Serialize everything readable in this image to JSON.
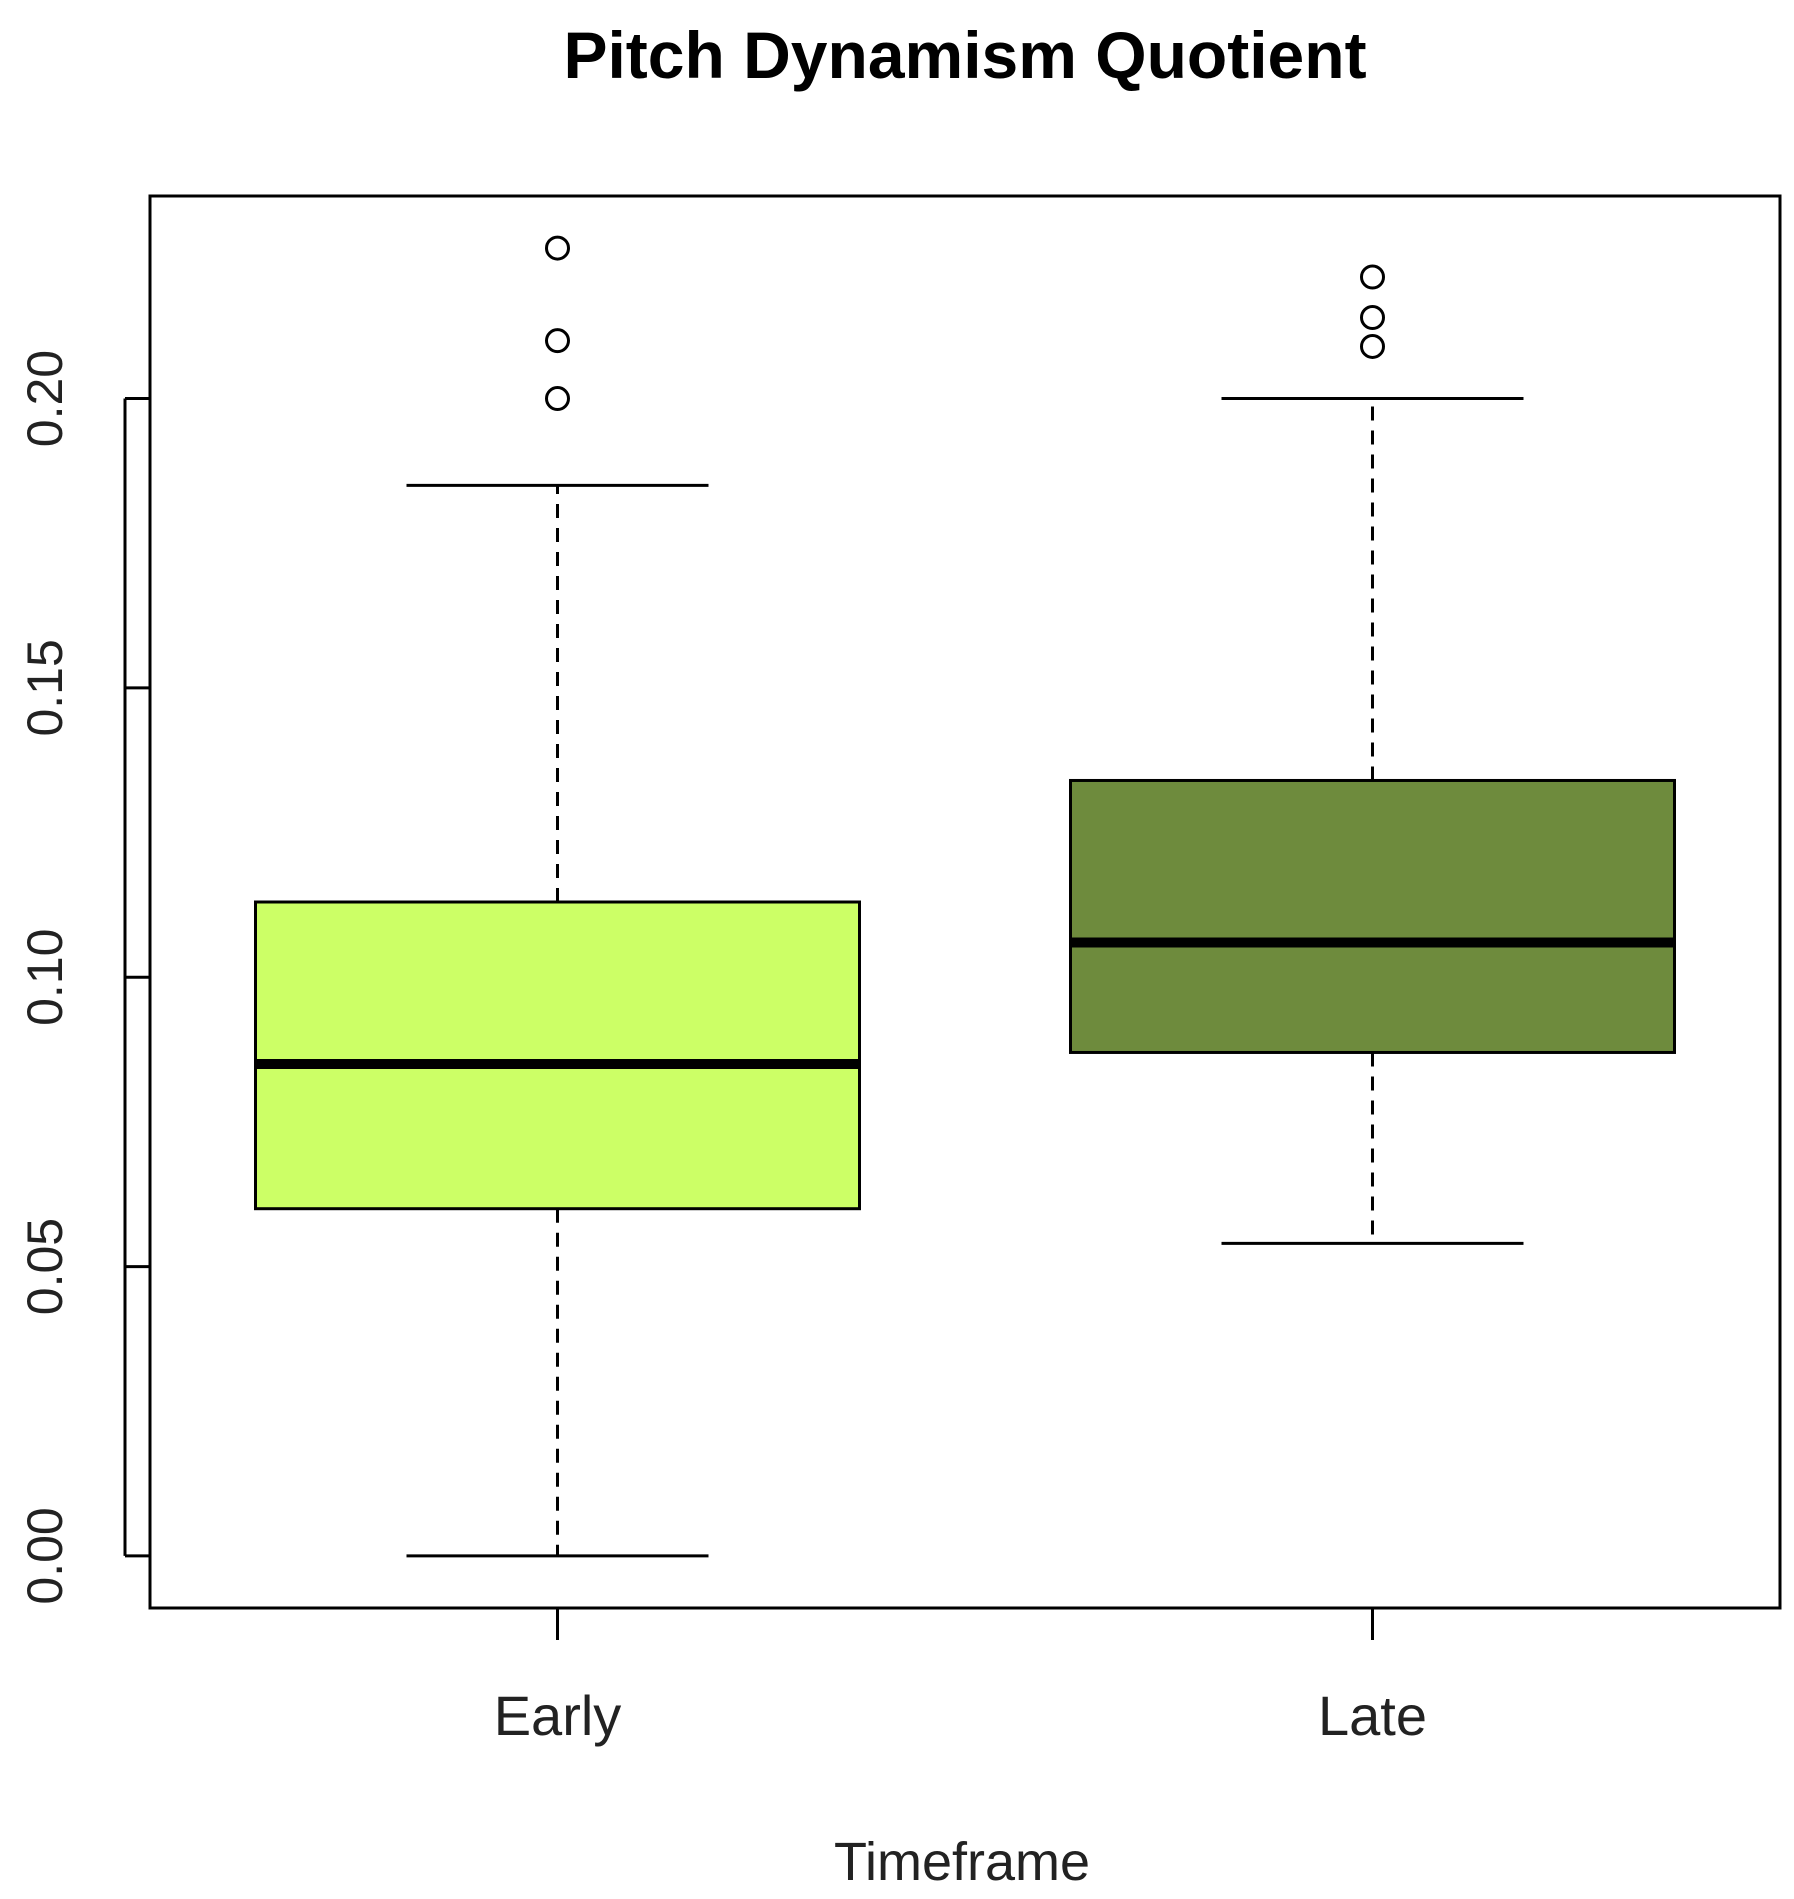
{
  "chart_data": {
    "type": "box",
    "title": "Pitch Dynamism Quotient",
    "xlabel": "Timeframe",
    "ylabel": "",
    "categories": [
      "Early",
      "Late"
    ],
    "ylim": [
      -0.009,
      0.235
    ],
    "yticks": [
      0.0,
      0.05,
      0.1,
      0.15,
      0.2
    ],
    "ytick_labels": [
      "0.00",
      "0.05",
      "0.10",
      "0.15",
      "0.20"
    ],
    "grid": false,
    "legend": false,
    "series": [
      {
        "category": "Early",
        "whisker_low": 0.0,
        "q1": 0.06,
        "median": 0.085,
        "q3": 0.113,
        "whisker_high": 0.185,
        "outliers": [
          0.2,
          0.21,
          0.226
        ],
        "fill": "#CCFF66"
      },
      {
        "category": "Late",
        "whisker_low": 0.054,
        "q1": 0.087,
        "median": 0.106,
        "q3": 0.134,
        "whisker_high": 0.2,
        "outliers": [
          0.209,
          0.214,
          0.221
        ],
        "fill": "#6E8B3D"
      }
    ]
  }
}
